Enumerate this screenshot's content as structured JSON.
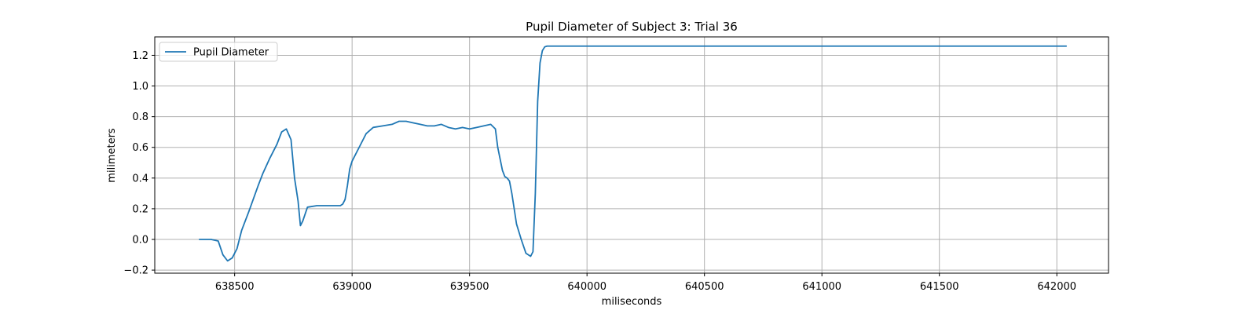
{
  "chart_data": {
    "type": "line",
    "title": "Pupil Diameter of Subject 3: Trial 36",
    "xlabel": "miliseconds",
    "ylabel": "milimeters",
    "xlim": [
      638160,
      642220
    ],
    "ylim": [
      -0.22,
      1.32
    ],
    "xticks": [
      638500,
      639000,
      639500,
      640000,
      640500,
      641000,
      641500,
      642000
    ],
    "yticks": [
      -0.2,
      0.0,
      0.2,
      0.4,
      0.6,
      0.8,
      1.0,
      1.2
    ],
    "ytick_labels": [
      "−0.2",
      "0.0",
      "0.2",
      "0.4",
      "0.6",
      "0.8",
      "1.0",
      "1.2"
    ],
    "grid": true,
    "legend_position": "upper-left",
    "colors": {
      "line": "#1f77b4",
      "grid": "#b0b0b0",
      "axes": "#000000",
      "legend_border": "#cccccc"
    },
    "series": [
      {
        "name": "Pupil Diameter",
        "x": [
          638350,
          638400,
          638430,
          638450,
          638470,
          638490,
          638510,
          638530,
          638560,
          638600,
          638620,
          638650,
          638680,
          638700,
          638720,
          638740,
          638755,
          638770,
          638780,
          638790,
          638810,
          638850,
          638950,
          638960,
          638970,
          638980,
          638990,
          639000,
          639030,
          639060,
          639090,
          639130,
          639170,
          639200,
          639230,
          639260,
          639290,
          639320,
          639350,
          639380,
          639410,
          639440,
          639470,
          639500,
          639530,
          639560,
          639590,
          639610,
          639620,
          639640,
          639650,
          639660,
          639670,
          639680,
          639700,
          639720,
          639740,
          639760,
          639770,
          639780,
          639790,
          639800,
          639810,
          639820,
          639830,
          639850,
          639900,
          640000,
          640500,
          641000,
          641500,
          642040
        ],
        "y": [
          0.0,
          0.0,
          -0.01,
          -0.1,
          -0.14,
          -0.12,
          -0.06,
          0.06,
          0.18,
          0.35,
          0.43,
          0.53,
          0.62,
          0.7,
          0.72,
          0.65,
          0.4,
          0.25,
          0.09,
          0.12,
          0.21,
          0.22,
          0.22,
          0.23,
          0.26,
          0.35,
          0.46,
          0.51,
          0.6,
          0.69,
          0.73,
          0.74,
          0.75,
          0.77,
          0.77,
          0.76,
          0.75,
          0.74,
          0.74,
          0.75,
          0.73,
          0.72,
          0.73,
          0.72,
          0.73,
          0.74,
          0.75,
          0.72,
          0.6,
          0.45,
          0.41,
          0.4,
          0.38,
          0.3,
          0.1,
          0.0,
          -0.09,
          -0.11,
          -0.08,
          0.3,
          0.9,
          1.15,
          1.23,
          1.255,
          1.26,
          1.26,
          1.26,
          1.26,
          1.26,
          1.26,
          1.26,
          1.26
        ]
      }
    ]
  }
}
